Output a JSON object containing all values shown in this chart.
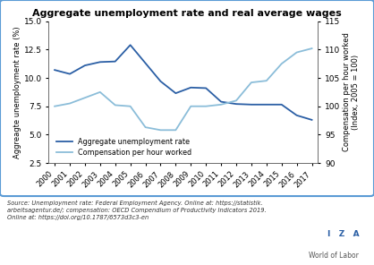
{
  "title": "Aggregate unemployment rate and real average wages",
  "years": [
    2000,
    2001,
    2002,
    2003,
    2004,
    2005,
    2006,
    2007,
    2008,
    2009,
    2010,
    2011,
    2012,
    2013,
    2014,
    2015,
    2016,
    2017
  ],
  "unemployment": [
    10.7,
    10.35,
    11.1,
    11.4,
    11.45,
    12.9,
    11.3,
    9.7,
    8.65,
    9.15,
    9.1,
    7.9,
    7.7,
    7.65,
    7.65,
    7.65,
    6.7,
    6.3
  ],
  "compensation": [
    100.0,
    100.5,
    101.5,
    102.5,
    100.2,
    100.0,
    96.3,
    95.8,
    95.8,
    100.0,
    100.0,
    100.3,
    101.0,
    104.2,
    104.5,
    107.5,
    109.5,
    110.2
  ],
  "unemployment_color": "#2b5fa5",
  "compensation_color": "#8bbdd9",
  "ylabel_left": "Aggreagte unemployment rate (%)",
  "ylabel_right": "Compensation per hour worked\n(Index, 2005 = 100)",
  "ylim_left": [
    2.5,
    15.0
  ],
  "ylim_right": [
    90,
    115
  ],
  "yticks_left": [
    2.5,
    5.0,
    7.5,
    10.0,
    12.5,
    15.0
  ],
  "yticks_right": [
    90,
    95,
    100,
    105,
    110,
    115
  ],
  "source_text": "Source: Unemployment rate: Federal Employment Agency. Online at: https://statistik.\narbeitsagentur.de/; compensation: OECD Compendium of Productivity Indicators 2019.\nOnline at: https://doi.org/10.1787/6573d3c3-en",
  "border_color": "#5b9bd5",
  "background_color": "#ffffff",
  "iza_color": "#2b5fa5"
}
